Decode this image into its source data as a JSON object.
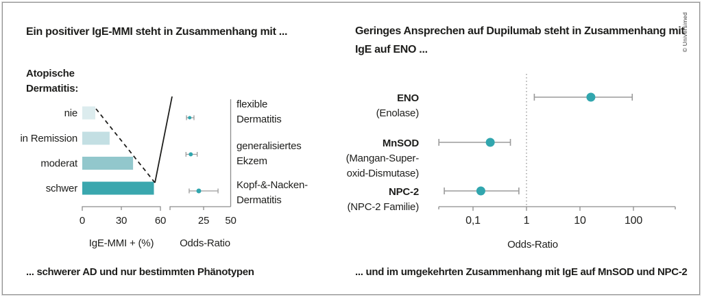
{
  "copyright": "© Universimed",
  "chart_data": [
    {
      "panel": "left",
      "type": "bar",
      "title": "Ein positiver IgE-MMI steht in Zusammenhang mit ...",
      "caption": "... schwerer AD und nur bestimmten Phänotypen",
      "bar": {
        "group_label": [
          "Atopische",
          "Dermatitis:"
        ],
        "categories": [
          "nie",
          "in Remission",
          "moderat",
          "schwer"
        ],
        "values": [
          10,
          21,
          39,
          55
        ],
        "unit": "%",
        "xlabel": "IgE-MMI + (%)",
        "xticks": [
          0,
          30,
          60
        ],
        "xlim": [
          0,
          63
        ],
        "bar_colors": [
          "#dcecee",
          "#c3dfe3",
          "#92c7cc",
          "#3aa7ae"
        ],
        "grid": false
      },
      "forest": {
        "xlabel": "Odds-Ratio",
        "xticks": [
          25,
          50
        ],
        "xlim": [
          0,
          50
        ],
        "point_color": "#31a6ae",
        "rows": [
          {
            "label": [
              "flexible",
              "Dermatitis"
            ],
            "or": 12,
            "lo": 9,
            "hi": 16
          },
          {
            "label": [
              "generalisiertes",
              "Ekzem"
            ],
            "or": 13,
            "lo": 8.5,
            "hi": 19
          },
          {
            "label": [
              "Kopf-&-Nacken-",
              "Dermatitis"
            ],
            "or": 20.5,
            "lo": 11.5,
            "hi": 38.5
          }
        ]
      },
      "annotation": "dashed trend line across bar ends joined to a solid connector line rising to the odds-ratio plot"
    },
    {
      "panel": "right",
      "type": "scatter",
      "subtype": "forest-log",
      "title_lines": [
        "Geringes Ansprechen auf Dupilumab steht in Zusammenhang mit",
        "IgE auf ENO ..."
      ],
      "caption": "... und im umgekehrten Zusammenhang mit IgE auf MnSOD und NPC-2",
      "forest": {
        "xlabel": "Odds-Ratio",
        "scale": "log",
        "xtick_labels": [
          "0,1",
          "1",
          "10",
          "100"
        ],
        "xtick_values": [
          0.1,
          1,
          10,
          100
        ],
        "xlim": [
          0.02,
          600
        ],
        "ref_value": 1,
        "point_color": "#31a6ae",
        "grid": false,
        "rows": [
          {
            "name": "ENO",
            "sub": [
              "(Enolase)"
            ],
            "or": 16,
            "lo": 1.4,
            "hi": 95
          },
          {
            "name": "MnSOD",
            "sub": [
              "(Mangan-Super-",
              "oxid-Dismutase)"
            ],
            "or": 0.21,
            "lo": 0.023,
            "hi": 0.5
          },
          {
            "name": "NPC-2",
            "sub": [
              "(NPC-2 Familie)"
            ],
            "or": 0.14,
            "lo": 0.029,
            "hi": 0.72
          }
        ]
      }
    }
  ]
}
